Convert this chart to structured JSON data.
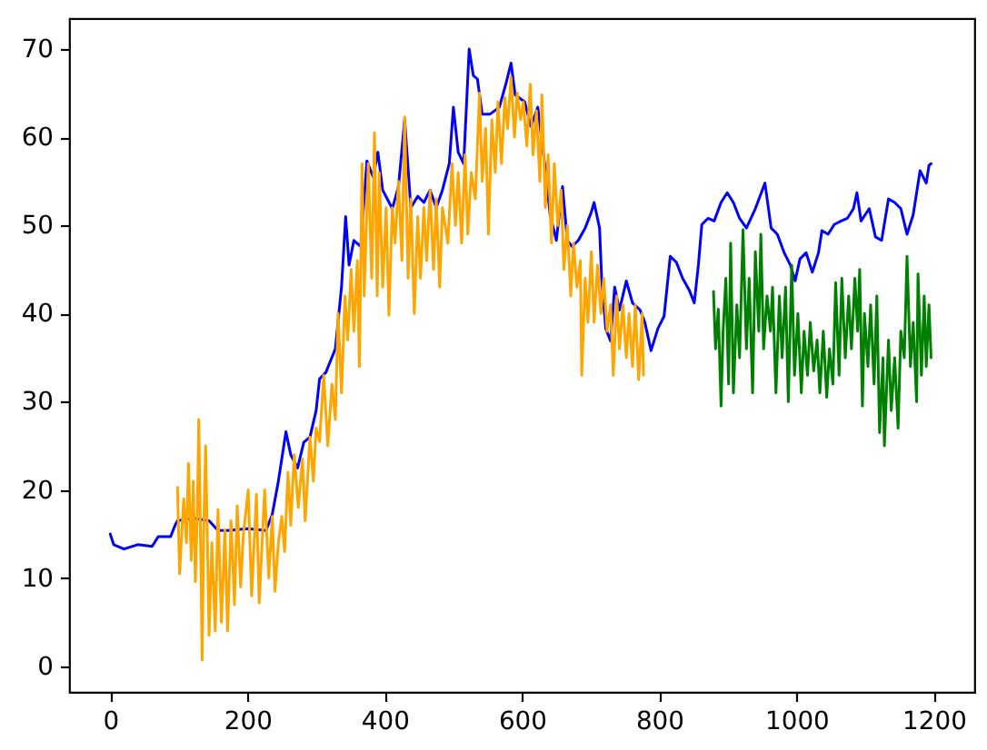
{
  "chart_data": {
    "type": "line",
    "xlim": [
      -60,
      1259
    ],
    "ylim": [
      -2.9,
      73.5
    ],
    "xticks": [
      0,
      200,
      400,
      600,
      800,
      1000,
      1200
    ],
    "yticks": [
      0,
      10,
      20,
      30,
      40,
      50,
      60,
      70
    ],
    "series": [
      {
        "color": "#0000ff",
        "x": [
          0,
          5,
          20,
          40,
          61,
          70,
          88,
          95,
          98,
          120,
          144,
          157,
          171,
          200,
          227,
          236,
          245,
          256,
          263,
          273,
          282,
          291,
          300,
          305,
          314,
          328,
          337,
          343,
          348,
          355,
          365,
          374,
          383,
          390,
          397,
          411,
          420,
          429,
          438,
          448,
          457,
          466,
          475,
          484,
          494,
          500,
          507,
          515,
          523,
          529,
          535,
          542,
          553,
          567,
          577,
          584,
          590,
          604,
          613,
          623,
          632,
          641,
          650,
          659,
          666,
          673,
          682,
          692,
          701,
          705,
          713,
          716,
          722,
          729,
          735,
          742,
          752,
          761,
          772,
          779,
          788,
          798,
          807,
          816,
          825,
          834,
          844,
          851,
          857,
          862,
          871,
          880,
          890,
          899,
          908,
          917,
          927,
          940,
          954,
          963,
          972,
          982,
          991,
          998,
          1005,
          1014,
          1023,
          1032,
          1037,
          1046,
          1055,
          1065,
          1074,
          1083,
          1088,
          1094,
          1106,
          1115,
          1124,
          1134,
          1143,
          1152,
          1161,
          1170,
          1180,
          1189,
          1193,
          1196
        ],
        "values": [
          15.0,
          13.8,
          13.3,
          13.8,
          13.6,
          14.7,
          14.7,
          16.1,
          16.5,
          16.8,
          16.5,
          15.4,
          15.4,
          15.6,
          15.4,
          17.2,
          21,
          26.6,
          24,
          22.5,
          25.4,
          26,
          29,
          32.6,
          33.3,
          36,
          43,
          51,
          45.5,
          48.3,
          47.6,
          57.3,
          55.5,
          58.3,
          54,
          51.9,
          54.4,
          62,
          52,
          53.3,
          52.6,
          54,
          52,
          54,
          57,
          63.4,
          58.3,
          57,
          70,
          67,
          66.6,
          62.6,
          62.6,
          63.4,
          66.2,
          68.4,
          64.8,
          64,
          61.2,
          63.4,
          57.6,
          51.2,
          48.3,
          54.4,
          48.3,
          47.6,
          48.3,
          49.7,
          51.5,
          52.6,
          49.7,
          44,
          38.3,
          36.9,
          43,
          40.4,
          43.7,
          41.2,
          40.4,
          39,
          35.8,
          38.3,
          39.7,
          46.5,
          45.8,
          44,
          42.6,
          41.2,
          45.5,
          50.1,
          50.8,
          50.5,
          52.6,
          53.7,
          52.6,
          50.8,
          49.7,
          51.9,
          54.8,
          49.7,
          49,
          46.9,
          45.5,
          43.7,
          46.2,
          46.9,
          44.7,
          46.9,
          49.4,
          49,
          50.1,
          50.5,
          50.8,
          51.9,
          53.7,
          50.5,
          51.9,
          48.7,
          48.3,
          53,
          52.6,
          51.9,
          49,
          51.2,
          56.2,
          54.8,
          56.8,
          57
        ]
      },
      {
        "color": "#ffa500",
        "x": [
          98,
          101,
          107,
          111,
          114,
          118,
          121,
          124,
          127,
          129,
          132,
          134,
          136,
          139,
          144,
          148,
          153,
          157,
          162,
          167,
          171,
          176,
          181,
          185,
          190,
          194,
          201,
          206,
          213,
          217,
          225,
          231,
          236,
          240,
          245,
          250,
          254,
          259,
          263,
          268,
          274,
          280,
          284,
          291,
          296,
          300,
          305,
          311,
          317,
          323,
          328,
          332,
          337,
          342,
          346,
          351,
          355,
          360,
          363,
          367,
          370,
          376,
          381,
          385,
          389,
          392,
          397,
          402,
          406,
          411,
          415,
          420,
          425,
          429,
          434,
          438,
          443,
          448,
          452,
          457,
          461,
          466,
          471,
          475,
          480,
          484,
          492,
          498,
          503,
          507,
          512,
          517,
          521,
          526,
          532,
          538,
          542,
          547,
          551,
          556,
          561,
          565,
          570,
          575,
          579,
          584,
          589,
          593,
          598,
          602,
          607,
          612,
          616,
          621,
          626,
          629,
          634,
          638,
          643,
          647,
          652,
          657,
          661,
          666,
          671,
          675,
          680,
          685,
          687,
          692,
          696,
          701,
          705,
          710,
          715,
          719,
          724,
          729,
          733,
          738,
          742,
          747,
          752,
          756,
          761,
          765,
          770,
          775,
          777
        ],
        "values": [
          20.3,
          10.5,
          19,
          14,
          23,
          12,
          21,
          9.6,
          18,
          28,
          12,
          0.7,
          15,
          25,
          3.5,
          14,
          4,
          17.8,
          5,
          15.5,
          4,
          16.5,
          7,
          18.2,
          9,
          15,
          20,
          8,
          19.5,
          7.2,
          20,
          10,
          17,
          8.5,
          14,
          17,
          13,
          22,
          16,
          24,
          18,
          23.5,
          16.5,
          26,
          21,
          27,
          25.5,
          33,
          25,
          32,
          28,
          40,
          31,
          42,
          37,
          45,
          38,
          46,
          34,
          57,
          42,
          57,
          44,
          60.5,
          42,
          56,
          43,
          52,
          39.8,
          52,
          48,
          55,
          46,
          62.3,
          44,
          53,
          40,
          51,
          44,
          52,
          46,
          54,
          45,
          53,
          43,
          52,
          48,
          57,
          50,
          56,
          48,
          58,
          49,
          56,
          53,
          65,
          55,
          61,
          49,
          62,
          56,
          64,
          57,
          64.5,
          61,
          66.8,
          60,
          65,
          62,
          64,
          59,
          66,
          58,
          63,
          55,
          64.8,
          52,
          58,
          48,
          57,
          50,
          54,
          45,
          50,
          42,
          48,
          43,
          46,
          33,
          44,
          39,
          47,
          39,
          45.5,
          40,
          44,
          38,
          41,
          33,
          42,
          36,
          41,
          35,
          40,
          34,
          41,
          32.5,
          40,
          33
        ]
      },
      {
        "color": "#008000",
        "x": [
          879,
          882,
          886,
          890,
          893,
          897,
          901,
          904,
          908,
          913,
          917,
          922,
          927,
          931,
          936,
          940,
          945,
          948,
          952,
          957,
          962,
          965,
          970,
          975,
          979,
          984,
          988,
          993,
          997,
          1002,
          1007,
          1011,
          1016,
          1020,
          1025,
          1030,
          1034,
          1039,
          1044,
          1048,
          1053,
          1057,
          1062,
          1066,
          1071,
          1076,
          1080,
          1085,
          1089,
          1092,
          1096,
          1099,
          1104,
          1108,
          1113,
          1117,
          1121,
          1126,
          1128,
          1134,
          1138,
          1143,
          1148,
          1152,
          1157,
          1161,
          1166,
          1170,
          1175,
          1177,
          1182,
          1186,
          1189,
          1193,
          1196
        ],
        "values": [
          42.5,
          36,
          40.5,
          29.5,
          38,
          44,
          32,
          48,
          31,
          41,
          35,
          49.5,
          36,
          44,
          31,
          47,
          38,
          49,
          36,
          42,
          38,
          43,
          31,
          42,
          35,
          43,
          30,
          45.5,
          33,
          40,
          31,
          38,
          33,
          39,
          33.5,
          37,
          31,
          38,
          30.5,
          36,
          32,
          43.5,
          33,
          44,
          35,
          42,
          36,
          44,
          38,
          45,
          29.5,
          40,
          34,
          41,
          32,
          42,
          26.5,
          35,
          25,
          37,
          29,
          35,
          27,
          38,
          35,
          46.5,
          34,
          39,
          30,
          44.5,
          33,
          42,
          34,
          41,
          35
        ]
      }
    ]
  }
}
